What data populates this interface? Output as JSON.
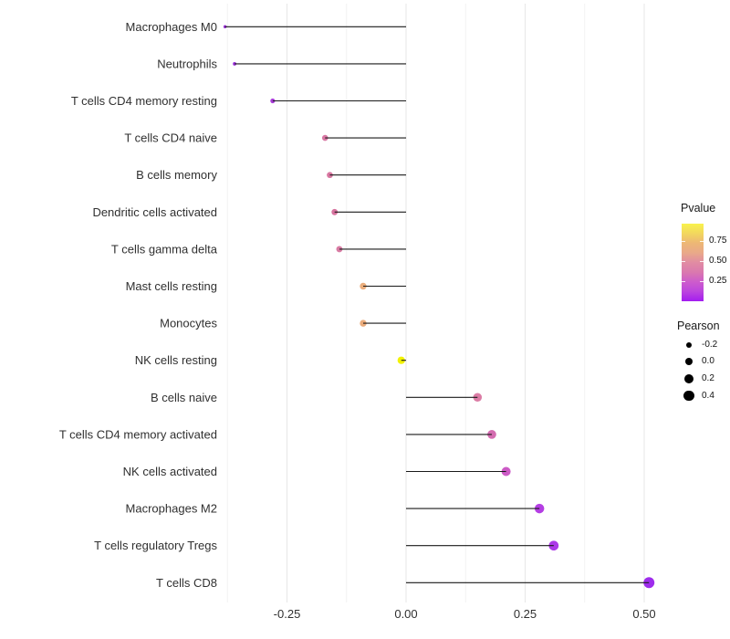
{
  "figure": {
    "background": "#ffffff",
    "grid_major_color": "#e7e7e7",
    "grid_minor_color": "#f2f2f2",
    "segment_color": "#1a1a1a",
    "axis_text_color": "#303030"
  },
  "legend": {
    "pvalue": {
      "title": "Pvalue",
      "ticks": [
        {
          "label": "0.75",
          "value": 0.75
        },
        {
          "label": "0.50",
          "value": 0.5
        },
        {
          "label": "0.25",
          "value": 0.25
        }
      ],
      "bar_range": [
        0,
        0.97
      ],
      "gradient_stops_bottom_to_top": [
        "#A31CF0",
        "#BC45DE",
        "#CD5CCC",
        "#DA79AE",
        "#E18CA3",
        "#E9A989",
        "#EDB775",
        "#F2D75E",
        "#F9F24C"
      ]
    },
    "pearson": {
      "title": "Pearson",
      "dot_color": "#000000",
      "items": [
        {
          "label": "-0.2",
          "value": -0.2
        },
        {
          "label": "0.0",
          "value": 0.0
        },
        {
          "label": "0.2",
          "value": 0.2
        },
        {
          "label": "0.4",
          "value": 0.4
        }
      ]
    }
  },
  "chart_data": {
    "type": "lollipop",
    "orientation": "horizontal",
    "title": "",
    "xlabel": "",
    "ylabel": "",
    "baseline": 0,
    "x_axis": {
      "range": [
        -0.39,
        0.546
      ],
      "ticks": [
        -0.25,
        0.0,
        0.25,
        0.5
      ],
      "tick_labels": [
        "-0.25",
        "0.00",
        "0.25",
        "0.50"
      ],
      "minor_ticks": [
        -0.375,
        -0.125,
        0.125,
        0.375
      ]
    },
    "grid": "vertical-only",
    "legend_position": "right",
    "points": [
      {
        "category": "Macrophages M0",
        "pearson": -0.38,
        "pvalue": 0.07,
        "color": "#9B30D9"
      },
      {
        "category": "Neutrophils",
        "pearson": -0.36,
        "pvalue": 0.09,
        "color": "#9C33DB"
      },
      {
        "category": "T cells CD4 memory resting",
        "pearson": -0.28,
        "pvalue": 0.14,
        "color": "#A83BD9"
      },
      {
        "category": "T cells CD4 naive",
        "pearson": -0.17,
        "pvalue": 0.46,
        "color": "#D877A3"
      },
      {
        "category": "B cells memory",
        "pearson": -0.16,
        "pvalue": 0.46,
        "color": "#D877A1"
      },
      {
        "category": "Dendritic cells activated",
        "pearson": -0.15,
        "pvalue": 0.45,
        "color": "#D7739F"
      },
      {
        "category": "T cells gamma delta",
        "pearson": -0.14,
        "pvalue": 0.48,
        "color": "#D97CA4"
      },
      {
        "category": "Mast cells resting",
        "pearson": -0.09,
        "pvalue": 0.69,
        "color": "#EBAE7D"
      },
      {
        "category": "Monocytes",
        "pearson": -0.09,
        "pvalue": 0.68,
        "color": "#EBAC7C"
      },
      {
        "category": "NK cells resting",
        "pearson": -0.01,
        "pvalue": 0.97,
        "color": "#F2F201"
      },
      {
        "category": "B cells naive",
        "pearson": 0.15,
        "pvalue": 0.48,
        "color": "#DB7CA5"
      },
      {
        "category": "T cells CD4 memory activated",
        "pearson": 0.18,
        "pvalue": 0.38,
        "color": "#D46CB0"
      },
      {
        "category": "NK cells activated",
        "pearson": 0.21,
        "pvalue": 0.3,
        "color": "#CC5AC6"
      },
      {
        "category": "Macrophages M2",
        "pearson": 0.28,
        "pvalue": 0.18,
        "color": "#B43EE3"
      },
      {
        "category": "T cells regulatory  Tregs",
        "pearson": 0.31,
        "pvalue": 0.14,
        "color": "#AC38E8"
      },
      {
        "category": "T cells CD8",
        "pearson": 0.51,
        "pvalue": 0.08,
        "color": "#9E2CEC"
      }
    ]
  }
}
